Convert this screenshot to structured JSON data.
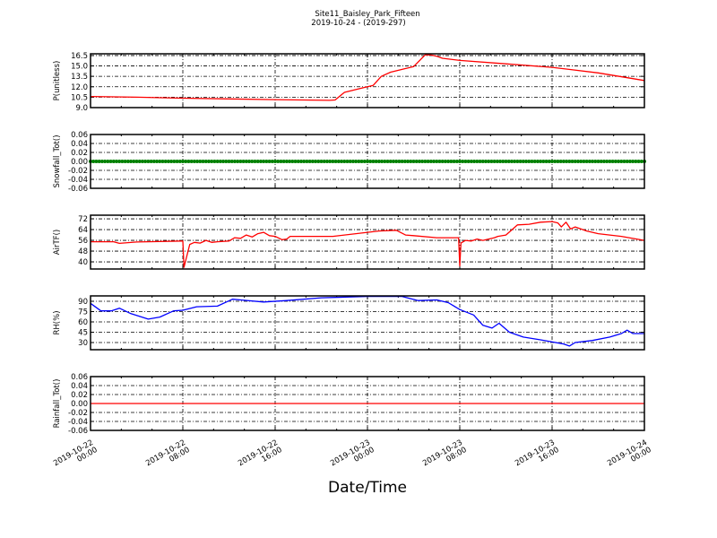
{
  "chart_data": [
    {
      "type": "line",
      "title": "Site11_Baisley_Park_Fifteen",
      "subtitle": "2019-10-24 - (2019-297)",
      "xlabel": "Date/Time",
      "x_unit": "hours since 2019-10-22 00:00",
      "xlim": [
        0,
        48
      ],
      "x_ticks": [
        0,
        8,
        16,
        24,
        32,
        40,
        48
      ],
      "x_tick_labels": [
        [
          "2019-10-22",
          "00:00"
        ],
        [
          "2019-10-22",
          "08:00"
        ],
        [
          "2019-10-22",
          "16:00"
        ],
        [
          "2019-10-23",
          "00:00"
        ],
        [
          "2019-10-23",
          "08:00"
        ],
        [
          "2019-10-23",
          "16:00"
        ],
        [
          "2019-10-24",
          "00:00"
        ]
      ],
      "grid": true,
      "panels": [
        {
          "ylabel": "P(unitless)",
          "color": "#ff0000",
          "style": "line",
          "ylim": [
            9.0,
            16.75
          ],
          "y_ticks": [
            9.0,
            10.5,
            12.0,
            13.5,
            15.0,
            16.5
          ],
          "y_tick_labels": [
            "9.0",
            "10.5",
            "12.0",
            "13.5",
            "15.0",
            "16.5"
          ],
          "x": [
            0,
            4,
            8,
            12,
            16,
            20.7,
            21.2,
            22,
            23.5,
            24.5,
            25.2,
            26,
            27,
            28,
            29,
            29.5,
            30,
            30.5,
            32,
            36,
            40,
            44,
            48
          ],
          "y": [
            10.6,
            10.5,
            10.35,
            10.25,
            10.15,
            10.05,
            10.1,
            11.2,
            11.8,
            12.2,
            13.5,
            14.1,
            14.5,
            14.9,
            16.6,
            16.6,
            16.4,
            16.1,
            15.8,
            15.3,
            14.8,
            14.0,
            12.9
          ]
        },
        {
          "ylabel": "Snowfall_Tot()",
          "color": "#008000",
          "style": "markers",
          "ylim": [
            -0.06,
            0.06
          ],
          "y_ticks": [
            -0.06,
            -0.04,
            -0.02,
            0.0,
            0.02,
            0.04,
            0.06
          ],
          "y_tick_labels": [
            "-0.06",
            "-0.04",
            "-0.02",
            "0.00",
            "0.02",
            "0.04",
            "0.06"
          ],
          "x": [
            0,
            48
          ],
          "y": [
            0,
            0
          ]
        },
        {
          "ylabel": "AirTF()",
          "color": "#ff0000",
          "style": "line",
          "ylim": [
            34.7,
            74.7
          ],
          "y_ticks": [
            40,
            48,
            56,
            64,
            72
          ],
          "y_tick_labels": [
            "40",
            "48",
            "56",
            "64",
            "72"
          ],
          "x": [
            0,
            2,
            2.5,
            4,
            7.9,
            8.0,
            8.1,
            8.6,
            9,
            9.5,
            10,
            10.5,
            11,
            12,
            12.5,
            13,
            13.5,
            14,
            14.5,
            15,
            15.5,
            16,
            16.6,
            17,
            17.3,
            21,
            25,
            26.5,
            27.3,
            28,
            30,
            31.9,
            32.0,
            32.1,
            32.5,
            33,
            33.5,
            34,
            35,
            35.3,
            36,
            37,
            38,
            39,
            40,
            40.5,
            40.8,
            41.2,
            41.6,
            42,
            43,
            44,
            46,
            48
          ],
          "y": [
            55,
            55,
            53.8,
            54.8,
            55.5,
            55.5,
            36,
            53,
            54.5,
            54,
            56,
            54.5,
            55,
            55.5,
            58,
            57.5,
            60,
            58.5,
            61,
            62,
            59.5,
            59,
            56.5,
            57,
            59,
            59,
            63,
            63.5,
            60,
            59.5,
            58,
            58,
            37,
            54,
            56,
            55.5,
            57,
            56,
            58,
            59,
            60,
            67.5,
            68,
            69.5,
            70,
            69,
            66,
            69.5,
            64.5,
            66,
            63,
            61,
            59,
            56
          ]
        },
        {
          "ylabel": "RH(%)",
          "color": "#0000ff",
          "style": "line",
          "ylim": [
            19.6,
            97.8
          ],
          "y_ticks": [
            30,
            45,
            60,
            75,
            90
          ],
          "y_tick_labels": [
            "30",
            "45",
            "60",
            "75",
            "90"
          ],
          "x": [
            0,
            0.9,
            1.8,
            2.5,
            3.5,
            5,
            6,
            7.2,
            8,
            9.2,
            11,
            12.3,
            13,
            15,
            17,
            20,
            24,
            27,
            28.4,
            30,
            31,
            32,
            33.2,
            34,
            34.8,
            35.4,
            36.3,
            37.5,
            39,
            41,
            41.5,
            42,
            43.5,
            45,
            46,
            46.5,
            47,
            48
          ],
          "y": [
            87,
            76,
            76,
            80,
            72,
            64,
            67,
            76,
            77,
            82,
            83,
            93,
            92,
            89,
            91,
            95,
            97,
            97,
            91,
            92,
            88,
            78,
            70,
            55,
            51,
            58,
            45,
            38,
            34,
            28,
            25,
            30,
            33,
            38,
            43,
            48,
            43,
            43
          ]
        },
        {
          "ylabel": "Rainfall_Tot()",
          "color": "#ff0000",
          "style": "line",
          "ylim": [
            -0.06,
            0.06
          ],
          "y_ticks": [
            -0.06,
            -0.04,
            -0.02,
            0.0,
            0.02,
            0.04,
            0.06
          ],
          "y_tick_labels": [
            "-0.06",
            "-0.04",
            "-0.02",
            "0.00",
            "0.02",
            "0.04",
            "0.06"
          ],
          "x": [
            0,
            48
          ],
          "y": [
            0,
            0
          ]
        }
      ]
    }
  ]
}
